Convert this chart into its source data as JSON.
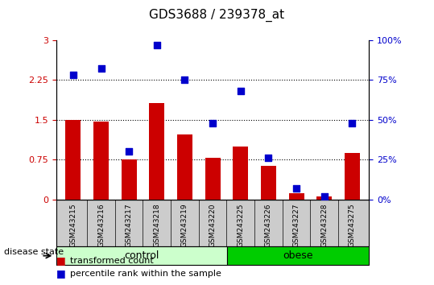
{
  "title": "GDS3688 / 239378_at",
  "samples": [
    "GSM243215",
    "GSM243216",
    "GSM243217",
    "GSM243218",
    "GSM243219",
    "GSM243220",
    "GSM243225",
    "GSM243226",
    "GSM243227",
    "GSM243228",
    "GSM243275"
  ],
  "transformed_count": [
    1.5,
    1.46,
    0.76,
    1.82,
    1.22,
    0.79,
    1.0,
    0.63,
    0.12,
    0.05,
    0.87
  ],
  "percentile_rank": [
    78,
    82,
    30,
    97,
    75,
    48,
    68,
    26,
    7,
    2,
    48
  ],
  "control_count": 6,
  "obese_count": 5,
  "bar_color": "#cc0000",
  "dot_color": "#0000cc",
  "left_ylim": [
    0,
    3.0
  ],
  "right_ylim": [
    0,
    100
  ],
  "left_yticks": [
    0,
    0.75,
    1.5,
    2.25,
    3.0
  ],
  "right_yticks": [
    0,
    25,
    50,
    75,
    100
  ],
  "left_ytick_labels": [
    "0",
    "0.75",
    "1.5",
    "2.25",
    "3"
  ],
  "right_ytick_labels": [
    "0%",
    "25%",
    "50%",
    "75%",
    "100%"
  ],
  "dotted_lines": [
    0.75,
    1.5,
    2.25
  ],
  "control_label": "control",
  "obese_label": "obese",
  "disease_state_label": "disease state",
  "legend_bar_label": "transformed count",
  "legend_dot_label": "percentile rank within the sample",
  "control_color": "#ccffcc",
  "obese_color": "#00cc00",
  "bg_color": "#cccccc",
  "plot_bg": "#ffffff"
}
